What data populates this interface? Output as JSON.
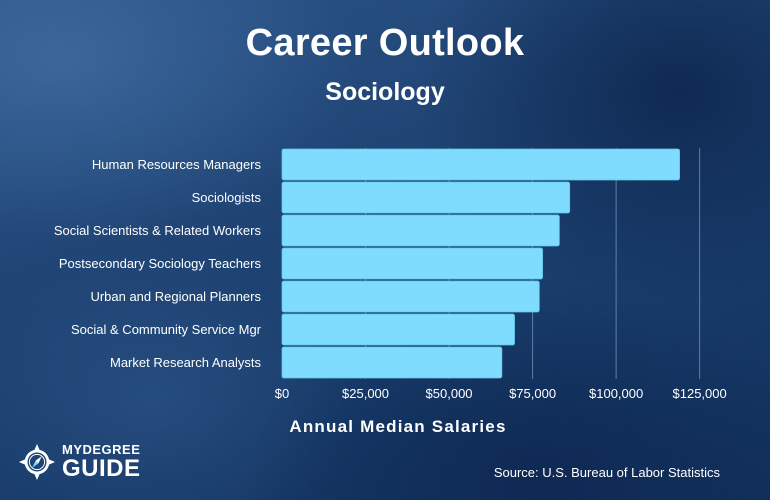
{
  "header": {
    "title": "Career Outlook",
    "subtitle": "Sociology"
  },
  "chart_data": {
    "type": "bar",
    "orientation": "horizontal",
    "title": "Career Outlook",
    "subtitle": "Sociology",
    "xlabel": "Annual Median Salaries",
    "ylabel": "",
    "categories": [
      "Human Resources Managers",
      "Sociologists",
      "Social Scientists & Related Workers",
      "Postsecondary Sociology Teachers",
      "Urban and Regional Planners",
      "Social & Community Service Mgr",
      "Market Research Analysts"
    ],
    "values": [
      119000,
      86110,
      83000,
      78000,
      77000,
      69600,
      65800
    ],
    "xlim": [
      0,
      127500
    ],
    "x_ticks": [
      0,
      25000,
      50000,
      75000,
      100000,
      125000
    ],
    "x_tick_labels": [
      "$0",
      "$25,000",
      "$50,000",
      "$75,000",
      "$100,000",
      "$125,000"
    ],
    "grid": "vertical",
    "legend": "none",
    "colors": {
      "bar": "#7fdcff",
      "bar_edge": "#5fc4ee",
      "grid": "#5d7ea8"
    }
  },
  "branding": {
    "line1": "MYDEGREE",
    "line2": "GUIDE",
    "badge_icon": "compass-icon"
  },
  "footer": {
    "source": "Source: U.S. Bureau of Labor Statistics"
  }
}
